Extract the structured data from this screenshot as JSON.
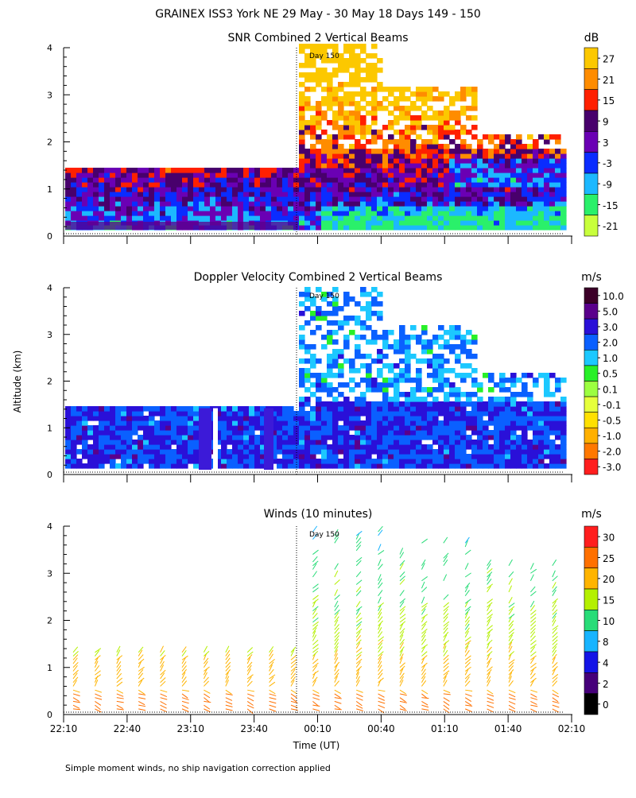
{
  "page": {
    "title": "GRAINEX ISS3 York NE  29 May - 30 May 18 Days 149 - 150",
    "ylabel": "Altitude (km)",
    "xlabel": "Time (UT)",
    "footnote": "Simple moment winds, no ship navigation correction applied",
    "day_marker": "Day 150"
  },
  "chart_data": [
    {
      "type": "heatmap",
      "title": "SNR Combined 2 Vertical Beams",
      "unit": "dB",
      "x_ticks": [
        "22:10",
        "22:40",
        "23:10",
        "23:40",
        "00:10",
        "00:40",
        "01:10",
        "01:40",
        "02:10"
      ],
      "y_ticks": [
        "0",
        "1",
        "2",
        "3",
        "4"
      ],
      "ylim": [
        0,
        4
      ],
      "colorbar": {
        "labels": [
          "27",
          "21",
          "15",
          "9",
          "3",
          "-3",
          "-9",
          "-15",
          "-21"
        ],
        "colors": [
          "#fcc800",
          "#ff8c00",
          "#ff2000",
          "#48006c",
          "#6a00b4",
          "#0a2cff",
          "#1cb8ff",
          "#2af06a",
          "#c8ff3c"
        ]
      }
    },
    {
      "type": "heatmap",
      "title": "Doppler Velocity Combined 2 Vertical Beams",
      "unit": "m/s",
      "x_ticks": [
        "22:10",
        "22:40",
        "23:10",
        "23:40",
        "00:10",
        "00:40",
        "01:10",
        "01:40",
        "02:10"
      ],
      "y_ticks": [
        "0",
        "1",
        "2",
        "3",
        "4"
      ],
      "ylim": [
        0,
        4
      ],
      "colorbar": {
        "labels": [
          "10.0",
          "5.0",
          "3.0",
          "2.0",
          "1.0",
          "0.5",
          "0.1",
          "-0.1",
          "-0.5",
          "-1.0",
          "-2.0",
          "-3.0"
        ],
        "colors": [
          "#3c0028",
          "#5a008c",
          "#2a10d8",
          "#0a60ff",
          "#1cc8ff",
          "#28f028",
          "#9cff40",
          "#e6ff3c",
          "#ffe000",
          "#ffb000",
          "#ff7800",
          "#ff1e1e"
        ]
      }
    },
    {
      "type": "scatter",
      "title": "Winds (10 minutes)",
      "unit": "m/s",
      "x_ticks": [
        "22:10",
        "22:40",
        "23:10",
        "23:40",
        "00:10",
        "00:40",
        "01:10",
        "01:40",
        "02:10"
      ],
      "y_ticks": [
        "0",
        "1",
        "2",
        "3",
        "4"
      ],
      "ylim": [
        0,
        4
      ],
      "colorbar": {
        "labels": [
          "30",
          "25",
          "20",
          "15",
          "10",
          "8",
          "4",
          "2",
          "0"
        ],
        "colors": [
          "#ff1e1e",
          "#ff7000",
          "#ffb400",
          "#b4f000",
          "#28dc78",
          "#18b4ff",
          "#1414e6",
          "#46007a",
          "#000000"
        ]
      }
    }
  ]
}
